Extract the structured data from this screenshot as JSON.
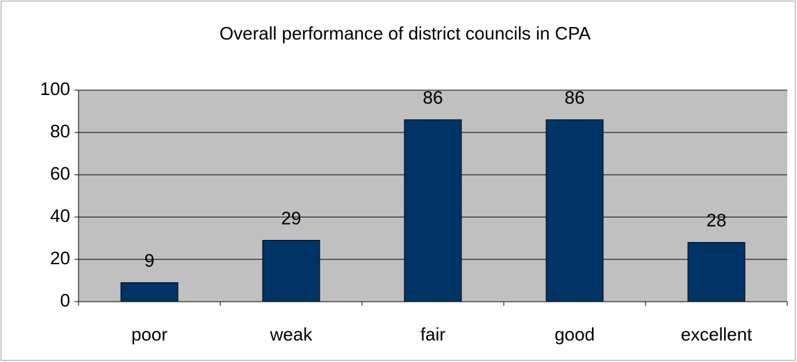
{
  "chart_data": {
    "type": "bar",
    "title": "Overall performance of district councils in CPA",
    "categories": [
      "poor",
      "weak",
      "fair",
      "good",
      "excellent"
    ],
    "values": [
      9,
      29,
      86,
      86,
      28
    ],
    "color": "#003366",
    "ylim": [
      0,
      100
    ],
    "yticks": [
      0,
      20,
      40,
      60,
      80,
      100
    ],
    "grid": true
  }
}
